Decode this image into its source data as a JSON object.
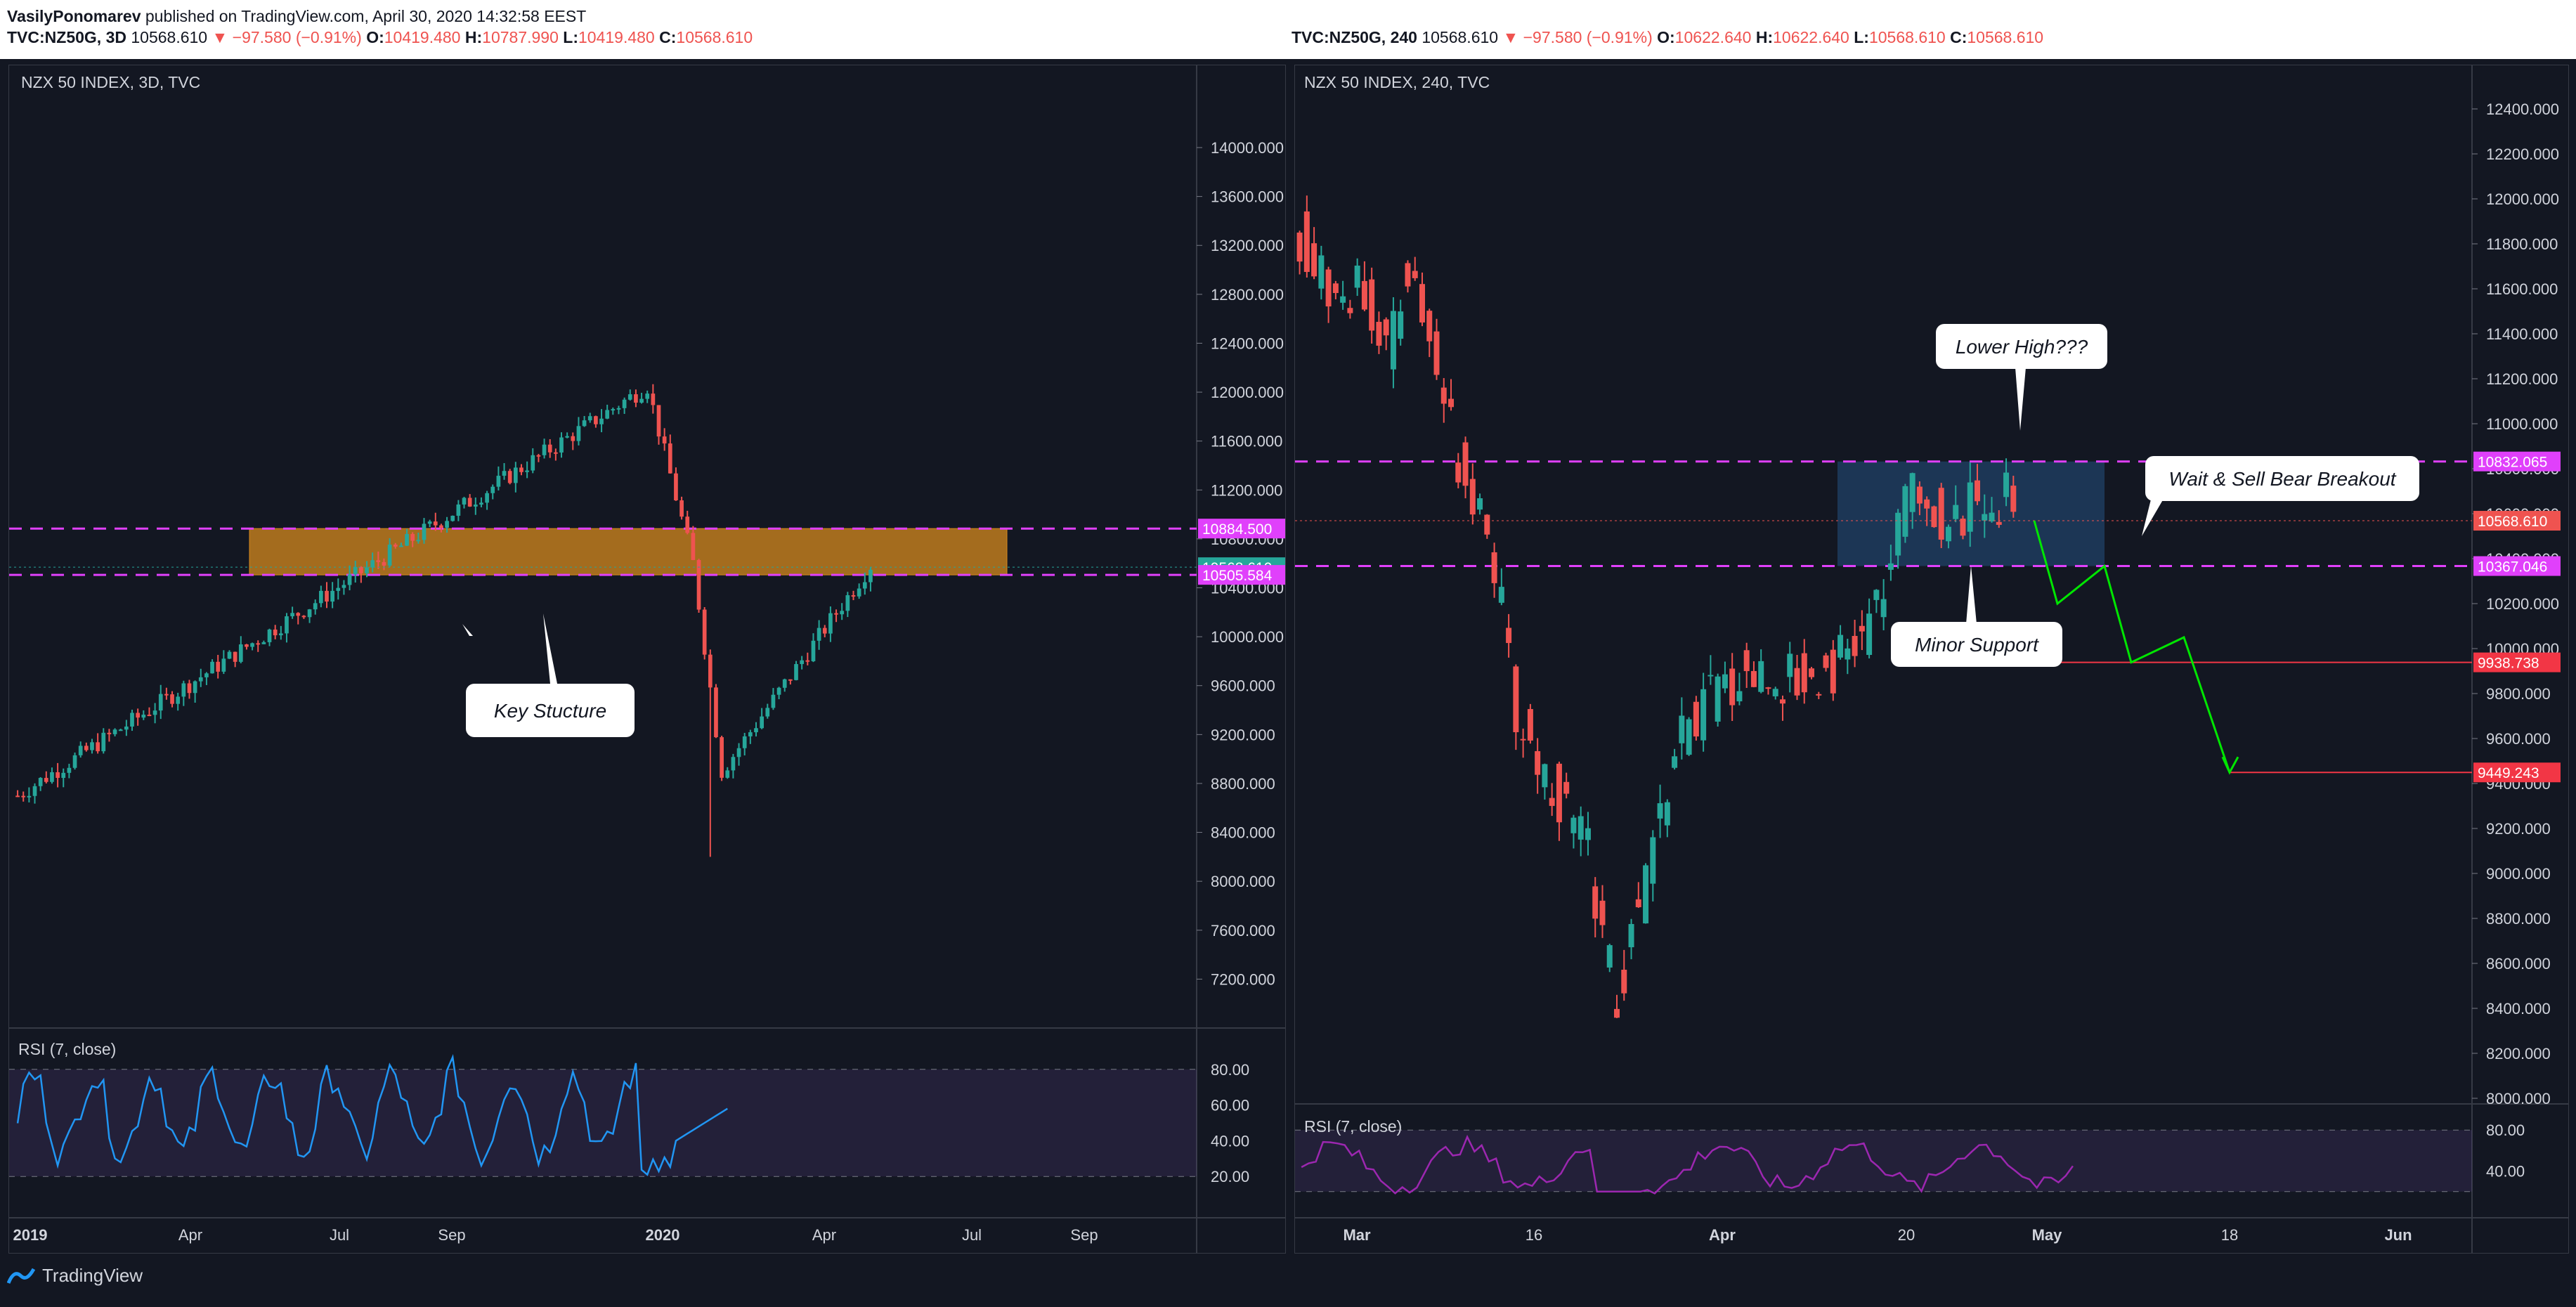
{
  "header": {
    "author": "VasilyPonomarev",
    "published_text": "published on TradingView.com, April 30, 2020 14:32:58 EEST"
  },
  "left_ticker": {
    "symbol": "TVC:NZ50G, 3D",
    "last": "10568.610",
    "change": "−97.580 (−0.91%)",
    "o_label": "O:",
    "o": "10419.480",
    "h_label": "H:",
    "h": "10787.990",
    "l_label": "L:",
    "l": "10419.480",
    "c_label": "C:",
    "c": "10568.610"
  },
  "right_ticker": {
    "symbol": "TVC:NZ50G, 240",
    "last": "10568.610",
    "change": "−97.580 (−0.91%)",
    "o_label": "O:",
    "o": "10622.640",
    "h_label": "H:",
    "h": "10622.640",
    "l_label": "L:",
    "l": "10568.610",
    "c_label": "C:",
    "c": "10568.610"
  },
  "footer": {
    "brand": "TradingView"
  },
  "colors": {
    "background": "#131722",
    "up": "#26a69a",
    "down": "#ef5350",
    "magenta": "#e040fb",
    "orange_zone": "#d68a1e",
    "blue_zone": "#1e3c5e",
    "rsi": "#2196f3",
    "rsi_right": "#9c27b0",
    "green_path": "#00e600",
    "red_level": "#f23645"
  },
  "chart_data": [
    {
      "type": "candlestick",
      "title": "NZX 50 INDEX, 3D, TVC",
      "ylim": [
        6800,
        14500
      ],
      "y_ticks": [
        "14000.000",
        "13600.000",
        "13200.000",
        "12800.000",
        "12400.000",
        "12000.000",
        "11600.000",
        "11200.000",
        "10800.000",
        "10400.000",
        "10000.000",
        "9600.000",
        "9200.000",
        "8800.000",
        "8400.000",
        "8000.000",
        "7600.000",
        "7200.000"
      ],
      "x_ticks": [
        "2019",
        "Apr",
        "Jul",
        "Sep",
        "2020",
        "Apr",
        "Jul",
        "Sep"
      ],
      "price_labels": [
        {
          "value": 10884.5,
          "text": "10884.500",
          "color": "#e040fb"
        },
        {
          "value": 10568.61,
          "text": "10568.610",
          "color": "#26a69a"
        },
        {
          "value": 10505.584,
          "text": "10505.584",
          "color": "#e040fb"
        }
      ],
      "zone": {
        "from": 10505.584,
        "to": 10884.5,
        "label": "Key Stucture"
      },
      "dashed_levels": [
        10884.5,
        10505.584
      ],
      "series": {
        "name": "NZX 50 INDEX",
        "start_value": 8800,
        "peak_value": 12100,
        "low_value": 8200,
        "last_value": 10568.61
      },
      "rsi": {
        "title": "RSI (7, close)",
        "levels": [
          80,
          20
        ],
        "ticks": [
          "80.00",
          "60.00",
          "40.00",
          "20.00"
        ]
      }
    },
    {
      "type": "candlestick",
      "title": "NZX 50 INDEX, 240, TVC",
      "ylim": [
        8000,
        12500
      ],
      "y_ticks": [
        "12400.000",
        "12200.000",
        "12000.000",
        "11800.000",
        "11600.000",
        "11400.000",
        "11200.000",
        "11000.000",
        "10800.000",
        "10600.000",
        "10400.000",
        "10200.000",
        "10000.000",
        "9800.000",
        "9600.000",
        "9400.000",
        "9200.000",
        "9000.000",
        "8800.000",
        "8600.000",
        "8400.000",
        "8200.000",
        "8000.000"
      ],
      "x_ticks": [
        "Mar",
        "16",
        "Apr",
        "20",
        "May",
        "18",
        "Jun"
      ],
      "price_labels": [
        {
          "value": 10832.065,
          "text": "10832.065",
          "color": "#e040fb"
        },
        {
          "value": 10568.61,
          "text": "10568.610",
          "color": "#ef5350"
        },
        {
          "value": 10367.046,
          "text": "10367.046",
          "color": "#e040fb"
        },
        {
          "value": 9938.738,
          "text": "9938.738",
          "color": "#f23645"
        },
        {
          "value": 9449.243,
          "text": "9449.243",
          "color": "#f23645"
        }
      ],
      "zone": {
        "from": 10367.046,
        "to": 10832.065
      },
      "dashed_levels": [
        10832.065,
        10367.046
      ],
      "annotations": [
        "Lower High???",
        "Wait & Sell Bear Breakout",
        "Minor Support"
      ],
      "projection": [
        10568.61,
        10200,
        10367,
        9938.738,
        10050,
        9449.243
      ],
      "rsi": {
        "title": "RSI (7, close)",
        "ticks": [
          "80.00",
          "40.00"
        ]
      }
    }
  ]
}
